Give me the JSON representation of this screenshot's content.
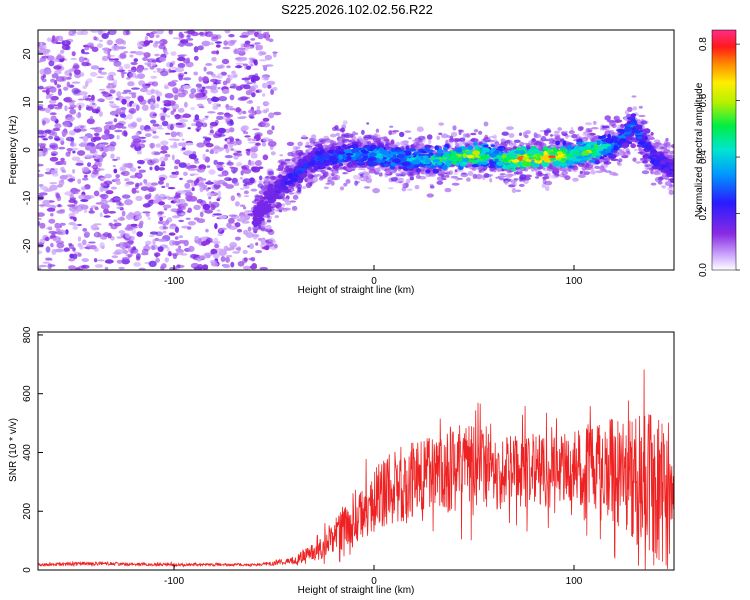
{
  "chart_data": [
    {
      "type": "heatmap",
      "title": "S225.2026.102.02.56.R22",
      "xlabel": "Height of straight line (km)",
      "ylabel": "Frequency (Hz)",
      "xlim": [
        -168,
        150
      ],
      "ylim": [
        -25,
        25
      ],
      "xticks": [
        -100,
        0,
        100
      ],
      "yticks": [
        -20,
        -10,
        0,
        10,
        20
      ],
      "colorbar": {
        "label": "Normalized spectral amplitude",
        "range": [
          0,
          0.85
        ],
        "ticks": [
          0.0,
          0.2,
          0.4,
          0.6,
          0.8
        ],
        "colormap": "rainbow (violet-blue-cyan-green-yellow-orange-red-magenta)"
      },
      "features": {
        "noise_region_x": [
          -168,
          -55
        ],
        "noise_amplitude": 0.05,
        "ridge": {
          "x": [
            -60,
            -50,
            -40,
            -30,
            -20,
            -10,
            0,
            10,
            20,
            30,
            40,
            50,
            60,
            70,
            80,
            90,
            100,
            110,
            120,
            130,
            140,
            150
          ],
          "frequency": [
            -14,
            -9,
            -5,
            -2,
            -1.5,
            -1,
            -1,
            -1.5,
            -2,
            -2,
            -1.5,
            -1,
            -1.5,
            -2,
            -1.5,
            -1.5,
            -1,
            0,
            1,
            5,
            -2,
            -4
          ],
          "amplitude": [
            0.15,
            0.2,
            0.3,
            0.3,
            0.35,
            0.4,
            0.45,
            0.45,
            0.45,
            0.5,
            0.65,
            0.7,
            0.5,
            0.75,
            0.8,
            0.8,
            0.55,
            0.65,
            0.4,
            0.35,
            0.3,
            0.25
          ]
        }
      }
    },
    {
      "type": "line",
      "xlabel": "Height of straight line (km)",
      "ylabel": "SNR (10 * v/v)",
      "xlim": [
        -168,
        150
      ],
      "ylim": [
        0,
        810
      ],
      "xticks": [
        -100,
        0,
        100
      ],
      "yticks": [
        0,
        200,
        400,
        600,
        800
      ],
      "series": [
        {
          "name": "SNR",
          "color": "#ee2222",
          "envelope": {
            "x": [
              -168,
              -140,
              -100,
              -60,
              -45,
              -40,
              -30,
              -20,
              -10,
              0,
              10,
              20,
              30,
              40,
              50,
              60,
              70,
              80,
              90,
              100,
              110,
              120,
              130,
              140,
              150
            ],
            "mean": [
              18,
              22,
              18,
              18,
              25,
              35,
              60,
              110,
              180,
              240,
              280,
              310,
              330,
              345,
              350,
              355,
              345,
              340,
              335,
              345,
              340,
              340,
              310,
              280,
              250
            ],
            "spread": [
              6,
              8,
              6,
              6,
              12,
              20,
              40,
              80,
              120,
              150,
              170,
              180,
              190,
              200,
              200,
              200,
              180,
              170,
              160,
              170,
              200,
              240,
              290,
              330,
              360
            ]
          }
        }
      ]
    }
  ],
  "colors": {
    "snr_line": "#ee2222",
    "frame": "#000000",
    "noise_violet": "#8a2be2"
  }
}
